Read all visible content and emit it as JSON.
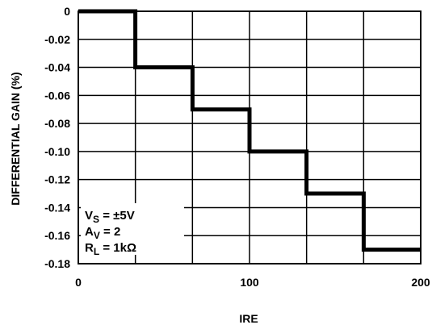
{
  "chart_data": {
    "type": "line",
    "title": "",
    "xlabel": "IRE",
    "ylabel": "DIFFERENTIAL GAIN (%)",
    "xlim": [
      0,
      200
    ],
    "ylim": [
      -0.18,
      0
    ],
    "grid": true,
    "x_ticks": [
      "0",
      "100",
      "200"
    ],
    "y_ticks": [
      "0",
      "-0.02",
      "-0.04",
      "-0.06",
      "-0.08",
      "-0.10",
      "-0.12",
      "-0.14",
      "-0.16",
      "-0.18"
    ],
    "series": [
      {
        "x": [
          0,
          33.3,
          33.3,
          66.7,
          66.7,
          100,
          100,
          133.3,
          133.3,
          166.7,
          166.7,
          200
        ],
        "y": [
          0,
          0,
          -0.04,
          -0.04,
          -0.07,
          -0.07,
          -0.1,
          -0.1,
          -0.13,
          -0.13,
          -0.17,
          -0.17
        ]
      }
    ],
    "annotations": {
      "vs": {
        "main": "V",
        "sub": "S",
        "rest": " = ±5V"
      },
      "av": {
        "main": "A",
        "sub": "V",
        "rest": " = 2"
      },
      "rl": {
        "main": "R",
        "sub": "L",
        "rest": " = 1kΩ"
      }
    },
    "legend": "bottom-left"
  }
}
